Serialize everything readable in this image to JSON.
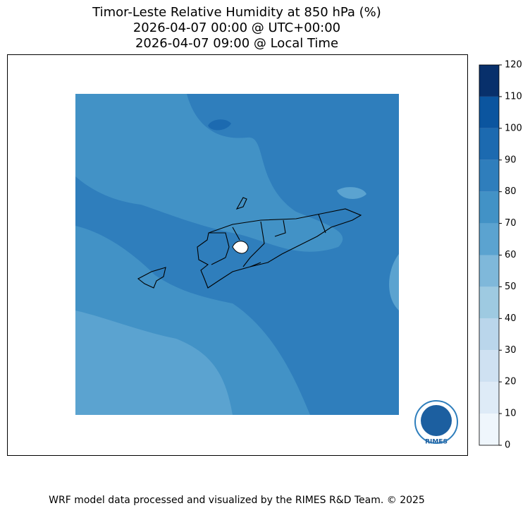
{
  "title": [
    "Timor-Leste Relative Humidity at 850 hPa (%)",
    "2026-04-07 00:00 @ UTC+00:00",
    "2026-04-07 09:00 @ Local Time"
  ],
  "colorbar": {
    "lim": [
      0,
      120
    ],
    "ticks": [
      0,
      10,
      20,
      30,
      40,
      50,
      60,
      70,
      80,
      90,
      100,
      110,
      120
    ],
    "colors": [
      "#eff6fc",
      "#deebf7",
      "#cfe1f2",
      "#bad6eb",
      "#9ecae1",
      "#7fb8da",
      "#5ba3d0",
      "#4292c6",
      "#2f7ebc",
      "#1c6ab0",
      "#0b559f",
      "#08306b"
    ]
  },
  "logo": "RIMES",
  "footer": "WRF model data processed and visualized by the RIMES R&D Team. © 2025"
}
